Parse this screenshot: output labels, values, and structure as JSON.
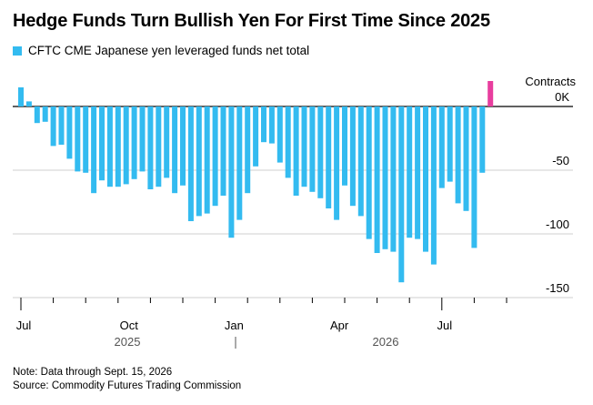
{
  "chart_data": {
    "type": "bar",
    "title": "Hedge Funds Turn Bullish Yen For First Time Since 2025",
    "series": [
      {
        "name": "CFTC CME Japanese yen leveraged funds net total",
        "color": "#33bbf0",
        "values": [
          15,
          4,
          -13,
          -12,
          -31,
          -30,
          -41,
          -51,
          -52,
          -68,
          -58,
          -63,
          -63,
          -61,
          -57,
          -51,
          -65,
          -63,
          -56,
          -68,
          -62,
          -90,
          -86,
          -84,
          -78,
          -70,
          -103,
          -89,
          -68,
          -47,
          -28,
          -29,
          -44,
          -56,
          -70,
          -63,
          -67,
          -72,
          -80,
          -89,
          -62,
          -78,
          -86,
          -104,
          -115,
          -112,
          -114,
          -138,
          -103,
          -104,
          -114,
          -124,
          -64,
          -59,
          -76,
          -82,
          -111,
          -52
        ]
      },
      {
        "name": "Latest week (net long)",
        "color": "#e83e9e",
        "values": [
          20
        ]
      }
    ],
    "ylim": [
      -150,
      20
    ],
    "yticks": [
      {
        "value": 0,
        "label": "0K"
      },
      {
        "value": -50,
        "label": "-50"
      },
      {
        "value": -100,
        "label": "-100"
      },
      {
        "value": -150,
        "label": "-150"
      }
    ],
    "yunit": "Contracts",
    "xticks": [
      "Jul",
      "Oct",
      "Jan",
      "Apr",
      "Jul"
    ],
    "xticks_week_index": [
      0,
      13,
      26,
      39,
      52
    ],
    "years": [
      "2025",
      "2026"
    ],
    "grid": true
  },
  "notes": {
    "note": "Note: Data through Sept. 15, 2026",
    "source": "Source: Commodity Futures Trading Commission"
  }
}
